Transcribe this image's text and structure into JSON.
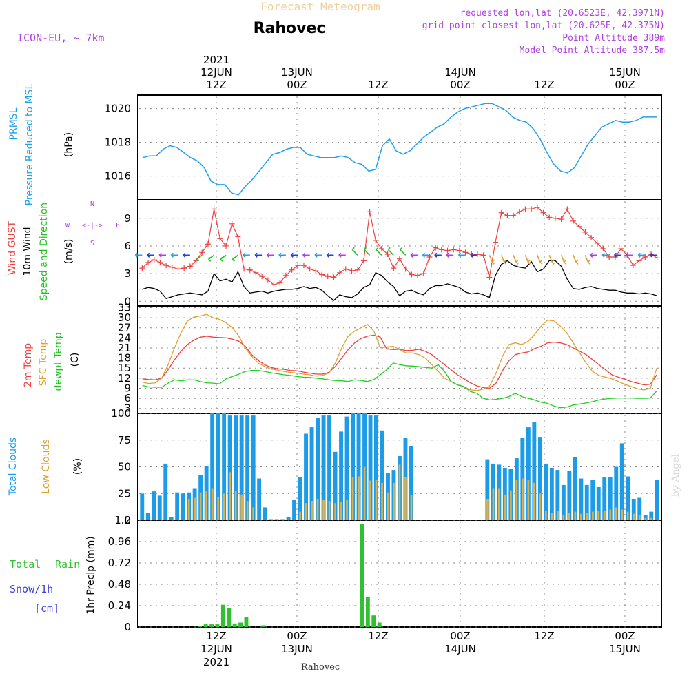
{
  "header": {
    "title": "Forecast Meteogram",
    "location": "Rahovec",
    "model": "ICON-EU, ~ 7km",
    "requested": "requested lon,lat (20.6523E, 42.3971N)",
    "gridpoint": "grid point closest lon,lat (20.625E, 42.375N)",
    "point_alt": "Point Altitude 389m",
    "model_alt": "Model Point Altitude 387.5m",
    "footer_location": "Rahovec",
    "watermark": "by Angel"
  },
  "time_axis": {
    "top_year": "2021",
    "bottom_year": "2021",
    "labels": [
      {
        "time": "12Z",
        "date": "12JUN"
      },
      {
        "time": "00Z",
        "date": "13JUN"
      },
      {
        "time": "12Z",
        "date": ""
      },
      {
        "time": "00Z",
        "date": "14JUN"
      },
      {
        "time": "12Z",
        "date": ""
      },
      {
        "time": "00Z",
        "date": "15JUN"
      }
    ]
  },
  "panel_labels": {
    "pressure": [
      "PRMSL",
      "Pressure Reduced to MSL",
      "(hPa)"
    ],
    "wind": [
      "Wind GUST",
      "10m Wind",
      "Speed and Direction",
      "(m/s)"
    ],
    "compass": {
      "w": "W",
      "e": "E",
      "n": "N",
      "s": "S",
      "arrow": "<-|->"
    },
    "temp": [
      "2m Temp",
      "SFC Temp",
      "dewpt Temp",
      "(C)"
    ],
    "clouds": [
      "Total Clouds",
      "Low Clouds",
      "(%)"
    ],
    "precip": [
      "Total",
      "Rain",
      "Snow/1h",
      "[cm]",
      "1hr Precip (mm)"
    ]
  },
  "colors": {
    "pressure": "#20a0e8",
    "gust": "#f04040",
    "wind": "#000000",
    "temp2m": "#f04040",
    "sfc": "#e0a030",
    "dewpt": "#20d020",
    "total_clouds": "#1c9ce8",
    "low_clouds": "#d8b050",
    "rain": "#30c030",
    "purple": "#b040e0"
  },
  "chart_data": [
    {
      "type": "line",
      "name": "pressure",
      "y_ticks": [
        "1016",
        "1018",
        "1020"
      ],
      "ylim": [
        1014.6,
        1020.8
      ],
      "series": [
        {
          "name": "PRMSL",
          "values": [
            1017.1,
            1017.2,
            1017.2,
            1017.6,
            1017.8,
            1017.7,
            1017.4,
            1017.1,
            1016.9,
            1016.5,
            1015.7,
            1015.5,
            1015.5,
            1015.0,
            1014.9,
            1015.4,
            1015.8,
            1016.3,
            1016.8,
            1017.3,
            1017.4,
            1017.6,
            1017.7,
            1017.7,
            1017.3,
            1017.2,
            1017.1,
            1017.1,
            1017.1,
            1017.2,
            1017.1,
            1016.8,
            1016.7,
            1016.3,
            1016.4,
            1017.8,
            1018.2,
            1017.5,
            1017.3,
            1017.5,
            1017.9,
            1018.3,
            1018.6,
            1018.9,
            1019.1,
            1019.5,
            1019.8,
            1020.0,
            1020.1,
            1020.2,
            1020.3,
            1020.3,
            1020.1,
            1019.9,
            1019.5,
            1019.3,
            1019.2,
            1018.8,
            1018.2,
            1017.4,
            1016.7,
            1016.3,
            1016.2,
            1016.5,
            1017.2,
            1017.9,
            1018.4,
            1018.9,
            1019.1,
            1019.3,
            1019.2,
            1019.2,
            1019.3,
            1019.5,
            1019.5,
            1019.5
          ]
        }
      ]
    },
    {
      "type": "line",
      "name": "wind",
      "y_ticks": [
        "0",
        "3",
        "6",
        "9"
      ],
      "ylim": [
        -0.5,
        11
      ],
      "series": [
        {
          "name": "Wind GUST",
          "values": [
            3.6,
            4.2,
            4.5,
            4.2,
            3.9,
            3.7,
            3.5,
            3.6,
            3.8,
            4.4,
            5.3,
            6.2,
            10.0,
            6.8,
            6.0,
            8.4,
            7.0,
            3.5,
            3.4,
            3.1,
            2.7,
            2.3,
            1.8,
            2.0,
            2.8,
            3.4,
            3.9,
            3.9,
            3.5,
            3.3,
            2.9,
            2.7,
            2.6,
            3.1,
            3.5,
            3.3,
            3.4,
            4.4,
            9.7,
            6.6,
            5.7,
            5.1,
            3.6,
            4.6,
            3.5,
            2.9,
            2.8,
            3.0,
            4.8,
            5.8,
            5.6,
            5.5,
            5.6,
            5.5,
            5.3,
            5.1,
            5.1,
            5.0,
            2.6,
            6.4,
            9.6,
            9.3,
            9.3,
            9.7,
            10.0,
            10.0,
            10.2,
            9.6,
            9.1,
            9.0,
            8.9,
            10.0,
            8.7,
            8.1,
            7.5,
            6.9,
            6.3,
            5.7,
            4.8,
            4.8,
            5.7,
            5.0,
            3.9,
            4.4,
            4.8,
            5.1,
            4.7
          ]
        },
        {
          "name": "10m Wind",
          "values": [
            1.3,
            1.5,
            1.4,
            1.1,
            0.3,
            0.5,
            0.7,
            0.8,
            0.9,
            0.8,
            0.7,
            1.1,
            3.0,
            2.2,
            2.4,
            2.1,
            3.2,
            1.6,
            0.9,
            1.0,
            1.1,
            0.9,
            1.1,
            1.2,
            1.3,
            1.3,
            1.4,
            1.6,
            1.4,
            1.5,
            1.2,
            0.6,
            0.1,
            0.7,
            0.5,
            0.4,
            0.8,
            1.5,
            1.8,
            3.1,
            2.8,
            2.1,
            1.6,
            0.6,
            1.1,
            1.2,
            0.9,
            0.7,
            1.4,
            1.7,
            1.7,
            1.9,
            1.7,
            1.5,
            1.0,
            0.8,
            0.9,
            0.7,
            0.4,
            2.8,
            4.0,
            4.4,
            3.9,
            3.7,
            3.6,
            4.3,
            3.2,
            3.5,
            4.4,
            4.4,
            3.8,
            2.4,
            1.4,
            1.3,
            1.5,
            1.6,
            1.4,
            1.3,
            1.2,
            1.2,
            1.0,
            0.9,
            0.9,
            0.8,
            0.9,
            0.8,
            0.6
          ]
        }
      ],
      "barbs": {
        "indices": [
          0,
          2,
          4,
          6,
          8,
          10,
          12,
          14,
          16,
          18,
          20,
          22,
          24,
          26,
          28,
          30,
          32,
          34,
          36,
          38,
          40,
          42,
          44,
          46,
          48,
          50,
          52,
          54,
          56,
          58,
          60,
          62,
          64,
          66,
          68,
          70,
          72,
          74,
          76,
          78,
          80,
          82,
          84,
          86
        ]
      }
    },
    {
      "type": "line",
      "name": "temperature",
      "y_ticks": [
        "3",
        "6",
        "9",
        "12",
        "15",
        "18",
        "21",
        "24",
        "27",
        "30",
        "33"
      ],
      "ylim": [
        1.5,
        33.5
      ],
      "series": [
        {
          "name": "2m Temp",
          "values": [
            11.8,
            11.6,
            11.5,
            12.0,
            14.5,
            17.5,
            20.0,
            22.0,
            23.3,
            24.2,
            24.5,
            24.2,
            24.1,
            24.0,
            23.6,
            23.0,
            21.5,
            19.0,
            17.3,
            16.0,
            15.2,
            14.8,
            14.6,
            14.3,
            14.2,
            13.8,
            13.5,
            13.2,
            13.2,
            13.7,
            15.5,
            18.0,
            20.5,
            22.5,
            23.8,
            24.5,
            24.8,
            24.2,
            20.7,
            20.5,
            20.6,
            20.2,
            20.3,
            20.6,
            20.0,
            19.0,
            17.5,
            16.0,
            14.5,
            13.0,
            11.8,
            10.6,
            9.7,
            9.2,
            9.0,
            10.5,
            14.2,
            17.2,
            19.0,
            19.5,
            19.8,
            20.8,
            21.5,
            22.5,
            22.7,
            22.5,
            22.0,
            21.0,
            20.0,
            19.0,
            17.5,
            16.0,
            14.5,
            13.0,
            12.3,
            11.7,
            11.0,
            10.5,
            10.0,
            10.2,
            13.0
          ]
        },
        {
          "name": "SFC Temp",
          "values": [
            10.8,
            10.4,
            10.6,
            12.0,
            16.0,
            21.0,
            25.5,
            29.0,
            30.2,
            30.5,
            31.0,
            30.0,
            29.5,
            28.5,
            27.0,
            24.5,
            21.0,
            18.5,
            16.5,
            15.5,
            14.7,
            14.4,
            14.0,
            13.7,
            13.5,
            13.2,
            13.0,
            12.6,
            12.8,
            13.5,
            16.5,
            21.0,
            24.5,
            26.0,
            27.0,
            28.0,
            26.0,
            21.0,
            21.3,
            21.5,
            20.5,
            19.5,
            19.5,
            19.0,
            18.0,
            16.0,
            14.0,
            12.0,
            11.0,
            10.0,
            9.5,
            8.5,
            8.3,
            8.7,
            9.7,
            13.5,
            18.5,
            22.0,
            22.5,
            22.0,
            23.0,
            25.0,
            27.5,
            29.3,
            29.0,
            27.5,
            25.5,
            22.5,
            19.5,
            16.5,
            14.0,
            12.8,
            12.3,
            11.8,
            11.0,
            10.2,
            9.5,
            8.8,
            8.5,
            9.0,
            15.0
          ]
        },
        {
          "name": "dewpt Temp",
          "values": [
            9.8,
            9.4,
            9.3,
            9.3,
            10.5,
            11.5,
            11.2,
            11.5,
            11.5,
            11.0,
            10.6,
            10.5,
            10.3,
            11.8,
            12.5,
            13.2,
            14.0,
            14.3,
            14.3,
            14.0,
            13.6,
            13.3,
            13.0,
            12.8,
            12.5,
            12.3,
            12.2,
            12.0,
            11.8,
            11.5,
            11.3,
            11.2,
            11.0,
            11.5,
            11.3,
            11.0,
            11.6,
            13.0,
            14.5,
            16.5,
            16.0,
            15.7,
            15.6,
            15.4,
            15.2,
            15.0,
            16.0,
            14.0,
            11.0,
            10.0,
            9.5,
            8.0,
            7.5,
            6.0,
            5.5,
            5.7,
            6.0,
            6.5,
            7.5,
            6.5,
            6.0,
            5.5,
            4.8,
            4.5,
            3.7,
            3.2,
            3.4,
            4.0,
            4.3,
            4.6,
            5.0,
            5.5,
            5.8,
            6.0,
            6.1,
            6.1,
            6.1,
            6.0,
            6.0,
            6.1,
            8.2
          ]
        }
      ]
    },
    {
      "type": "bar",
      "name": "clouds",
      "y_ticks": [
        "0",
        "25",
        "50",
        "75",
        "100"
      ],
      "ylim": [
        0,
        100
      ],
      "series": [
        {
          "name": "Total Clouds",
          "values": [
            25,
            7,
            27,
            23,
            53,
            3,
            26,
            25,
            26,
            30,
            42,
            51,
            100,
            100,
            100,
            98,
            98,
            98,
            98,
            98,
            39,
            12,
            1,
            1,
            1,
            3,
            19,
            40,
            81,
            87,
            96,
            98,
            98,
            64,
            83,
            97,
            100,
            100,
            100,
            98,
            98,
            84,
            44,
            47,
            60,
            77,
            69,
            0,
            0,
            0,
            0,
            0,
            0,
            0,
            0,
            0,
            0,
            0,
            0,
            57,
            53,
            52,
            49,
            48,
            58,
            77,
            87,
            92,
            78,
            53,
            49,
            47,
            33,
            46,
            59,
            39,
            33,
            38,
            31,
            40,
            40,
            50,
            72,
            41,
            20,
            21,
            5,
            8,
            38
          ]
        },
        {
          "name": "Low Clouds",
          "values": [
            0,
            0,
            0,
            0,
            0,
            0,
            0,
            0,
            20,
            21,
            26,
            27,
            30,
            22,
            25,
            45,
            27,
            24,
            18,
            12,
            0,
            0,
            0,
            0,
            0,
            0,
            0,
            8,
            16,
            18,
            20,
            19,
            18,
            16,
            17,
            19,
            40,
            41,
            50,
            37,
            38,
            35,
            26,
            35,
            52,
            40,
            24,
            0,
            0,
            0,
            0,
            0,
            0,
            0,
            0,
            0,
            0,
            0,
            0,
            20,
            30,
            30,
            24,
            28,
            38,
            39,
            38,
            35,
            25,
            9,
            7,
            9,
            5,
            7,
            8,
            6,
            7,
            8,
            9,
            9,
            10,
            12,
            10,
            8,
            6,
            5,
            2,
            2,
            0
          ]
        }
      ]
    },
    {
      "type": "bar",
      "name": "precipitation",
      "y_ticks": [
        "0",
        "0.24",
        "0.48",
        "0.72",
        "0.96",
        "1.2"
      ],
      "ylim": [
        0,
        1.2
      ],
      "series": [
        {
          "name": "Total Rain",
          "values": [
            0,
            0,
            0,
            0,
            0,
            0,
            0,
            0,
            0,
            0,
            0.01,
            0.03,
            0.03,
            0.03,
            0.25,
            0.21,
            0.04,
            0.05,
            0.11,
            0,
            0,
            0.02,
            0,
            0,
            0,
            0,
            0,
            0,
            0,
            0,
            0,
            0,
            0,
            0,
            0,
            0,
            0,
            0,
            1.16,
            0.34,
            0.13,
            0.05,
            0,
            0,
            0,
            0,
            0,
            0,
            0,
            0,
            0,
            0,
            0,
            0,
            0,
            0,
            0,
            0,
            0,
            0,
            0,
            0,
            0,
            0,
            0,
            0,
            0,
            0,
            0,
            0,
            0,
            0,
            0,
            0,
            0,
            0,
            0,
            0,
            0,
            0,
            0,
            0,
            0,
            0,
            0,
            0,
            0,
            0,
            0,
            0
          ]
        }
      ]
    }
  ]
}
